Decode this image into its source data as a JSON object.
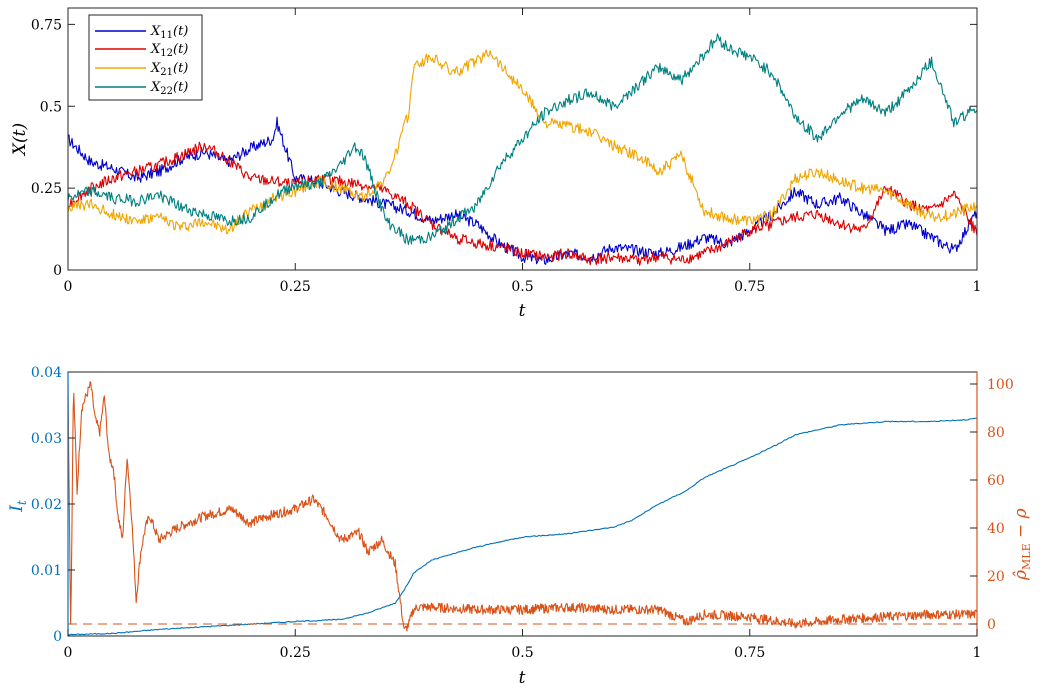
{
  "chart_data": [
    {
      "type": "line",
      "xlabel": "t",
      "ylabel": "X(t)",
      "xlim": [
        0,
        1
      ],
      "ylim": [
        0,
        0.8
      ],
      "xticks": [
        "0",
        "0.25",
        "0.5",
        "0.75",
        "1"
      ],
      "yticks": [
        "0",
        "0.25",
        "0.5",
        "0.75"
      ],
      "legend_position": "top-left",
      "grid": false,
      "series": [
        {
          "name": "X11(t)",
          "label_main": "X",
          "label_sub": "11",
          "label_tail": "(t)",
          "color": "#0000cc",
          "x": [
            0,
            0.025,
            0.05,
            0.075,
            0.1,
            0.125,
            0.15,
            0.175,
            0.2,
            0.225,
            0.23,
            0.25,
            0.275,
            0.3,
            0.325,
            0.35,
            0.375,
            0.4,
            0.425,
            0.45,
            0.475,
            0.5,
            0.525,
            0.55,
            0.575,
            0.6,
            0.625,
            0.65,
            0.675,
            0.7,
            0.725,
            0.75,
            0.775,
            0.8,
            0.825,
            0.85,
            0.875,
            0.9,
            0.925,
            0.95,
            0.975,
            1
          ],
          "y": [
            0.4,
            0.33,
            0.31,
            0.28,
            0.3,
            0.34,
            0.36,
            0.33,
            0.37,
            0.4,
            0.45,
            0.28,
            0.27,
            0.24,
            0.22,
            0.2,
            0.18,
            0.15,
            0.17,
            0.14,
            0.08,
            0.04,
            0.03,
            0.05,
            0.04,
            0.07,
            0.06,
            0.05,
            0.07,
            0.1,
            0.08,
            0.12,
            0.17,
            0.24,
            0.2,
            0.22,
            0.17,
            0.12,
            0.14,
            0.1,
            0.06,
            0.18
          ]
        },
        {
          "name": "X12(t)",
          "label_main": "X",
          "label_sub": "12",
          "label_tail": "(t)",
          "color": "#dd0000",
          "x": [
            0,
            0.025,
            0.05,
            0.075,
            0.1,
            0.125,
            0.15,
            0.175,
            0.2,
            0.225,
            0.25,
            0.275,
            0.3,
            0.325,
            0.35,
            0.375,
            0.4,
            0.425,
            0.45,
            0.475,
            0.5,
            0.525,
            0.55,
            0.575,
            0.6,
            0.625,
            0.65,
            0.675,
            0.7,
            0.725,
            0.75,
            0.775,
            0.8,
            0.825,
            0.85,
            0.875,
            0.9,
            0.925,
            0.95,
            0.975,
            1
          ],
          "y": [
            0.2,
            0.25,
            0.28,
            0.3,
            0.32,
            0.35,
            0.38,
            0.34,
            0.28,
            0.27,
            0.26,
            0.28,
            0.27,
            0.26,
            0.24,
            0.2,
            0.14,
            0.1,
            0.08,
            0.07,
            0.05,
            0.04,
            0.05,
            0.03,
            0.04,
            0.03,
            0.04,
            0.03,
            0.05,
            0.08,
            0.12,
            0.14,
            0.16,
            0.17,
            0.14,
            0.12,
            0.25,
            0.2,
            0.18,
            0.23,
            0.11
          ]
        },
        {
          "name": "X21(t)",
          "label_main": "X",
          "label_sub": "21",
          "label_tail": "(t)",
          "color": "#f0a500",
          "x": [
            0,
            0.025,
            0.05,
            0.075,
            0.1,
            0.125,
            0.15,
            0.175,
            0.2,
            0.225,
            0.25,
            0.275,
            0.3,
            0.325,
            0.35,
            0.36,
            0.375,
            0.38,
            0.4,
            0.425,
            0.45,
            0.465,
            0.475,
            0.5,
            0.525,
            0.55,
            0.575,
            0.6,
            0.625,
            0.65,
            0.675,
            0.7,
            0.725,
            0.75,
            0.775,
            0.8,
            0.825,
            0.85,
            0.875,
            0.9,
            0.925,
            0.95,
            0.975,
            1
          ],
          "y": [
            0.19,
            0.2,
            0.17,
            0.15,
            0.16,
            0.13,
            0.15,
            0.12,
            0.18,
            0.22,
            0.24,
            0.27,
            0.25,
            0.22,
            0.28,
            0.35,
            0.48,
            0.62,
            0.65,
            0.6,
            0.64,
            0.67,
            0.63,
            0.55,
            0.45,
            0.44,
            0.42,
            0.38,
            0.35,
            0.3,
            0.35,
            0.18,
            0.16,
            0.15,
            0.17,
            0.28,
            0.3,
            0.27,
            0.25,
            0.24,
            0.2,
            0.16,
            0.17,
            0.2
          ]
        },
        {
          "name": "X22(t)",
          "label_main": "X",
          "label_sub": "22",
          "label_tail": "(t)",
          "color": "#008080",
          "x": [
            0,
            0.025,
            0.05,
            0.075,
            0.1,
            0.125,
            0.15,
            0.175,
            0.2,
            0.225,
            0.25,
            0.275,
            0.3,
            0.315,
            0.325,
            0.35,
            0.375,
            0.4,
            0.425,
            0.45,
            0.475,
            0.5,
            0.525,
            0.55,
            0.575,
            0.6,
            0.625,
            0.65,
            0.675,
            0.7,
            0.715,
            0.725,
            0.75,
            0.775,
            0.8,
            0.825,
            0.85,
            0.875,
            0.9,
            0.925,
            0.95,
            0.975,
            1
          ],
          "y": [
            0.22,
            0.24,
            0.22,
            0.21,
            0.23,
            0.19,
            0.17,
            0.15,
            0.16,
            0.22,
            0.26,
            0.26,
            0.32,
            0.38,
            0.35,
            0.15,
            0.09,
            0.1,
            0.15,
            0.2,
            0.32,
            0.4,
            0.48,
            0.52,
            0.54,
            0.5,
            0.56,
            0.62,
            0.58,
            0.66,
            0.71,
            0.68,
            0.65,
            0.6,
            0.47,
            0.4,
            0.48,
            0.52,
            0.48,
            0.55,
            0.64,
            0.45,
            0.5
          ]
        }
      ]
    },
    {
      "type": "line",
      "xlabel": "t",
      "ylabel_left": "I",
      "ylabel_left_sub": "t",
      "ylabel_right": "ρ̂",
      "ylabel_right_sub": "MLE",
      "ylabel_right_tail": " − ρ",
      "xlim": [
        0,
        1
      ],
      "ylim_left": [
        0,
        0.04
      ],
      "ylim_right": [
        -5,
        105
      ],
      "xticks": [
        "0",
        "0.25",
        "0.5",
        "0.75",
        "1"
      ],
      "yticks_left": [
        "0",
        "0.01",
        "0.02",
        "0.03",
        "0.04"
      ],
      "yticks_right": [
        "0",
        "20",
        "40",
        "60",
        "80",
        "100"
      ],
      "left_axis_color": "#0072bd",
      "right_axis_color": "#d95319",
      "grid": false,
      "series": [
        {
          "axis": "left",
          "color": "#0072bd",
          "x": [
            0,
            0.05,
            0.1,
            0.15,
            0.2,
            0.25,
            0.3,
            0.33,
            0.36,
            0.37,
            0.38,
            0.4,
            0.45,
            0.5,
            0.55,
            0.6,
            0.62,
            0.65,
            0.68,
            0.7,
            0.75,
            0.78,
            0.8,
            0.85,
            0.9,
            0.95,
            0.99,
            1
          ],
          "y": [
            0.0002,
            0.0004,
            0.001,
            0.0014,
            0.0018,
            0.0022,
            0.0025,
            0.0035,
            0.005,
            0.007,
            0.0095,
            0.0115,
            0.0135,
            0.015,
            0.0155,
            0.0165,
            0.0175,
            0.02,
            0.022,
            0.024,
            0.027,
            0.029,
            0.0305,
            0.032,
            0.0325,
            0.0325,
            0.0328,
            0.033
          ]
        },
        {
          "axis": "right",
          "color": "#d95319",
          "x": [
            0,
            0.003,
            0.006,
            0.01,
            0.015,
            0.02,
            0.025,
            0.03,
            0.035,
            0.04,
            0.045,
            0.05,
            0.055,
            0.06,
            0.065,
            0.07,
            0.075,
            0.08,
            0.085,
            0.09,
            0.1,
            0.12,
            0.15,
            0.18,
            0.2,
            0.22,
            0.25,
            0.27,
            0.285,
            0.3,
            0.32,
            0.33,
            0.345,
            0.36,
            0.37,
            0.375,
            0.38,
            0.385,
            0.4,
            0.45,
            0.5,
            0.55,
            0.6,
            0.65,
            0.68,
            0.7,
            0.75,
            0.8,
            0.85,
            0.9,
            0.95,
            1
          ],
          "y": [
            100,
            -5,
            100,
            55,
            90,
            95,
            100,
            85,
            80,
            95,
            70,
            65,
            45,
            35,
            70,
            45,
            10,
            30,
            40,
            45,
            35,
            40,
            45,
            48,
            42,
            45,
            48,
            52,
            45,
            35,
            38,
            30,
            35,
            25,
            -3,
            0,
            6,
            7,
            7,
            6,
            6,
            7,
            6,
            6,
            1,
            4,
            3,
            0,
            2,
            3,
            4,
            4
          ]
        },
        {
          "axis": "right",
          "color": "#d95319",
          "dashed": true,
          "x": [
            0,
            1
          ],
          "y": [
            0,
            0
          ]
        }
      ]
    }
  ]
}
